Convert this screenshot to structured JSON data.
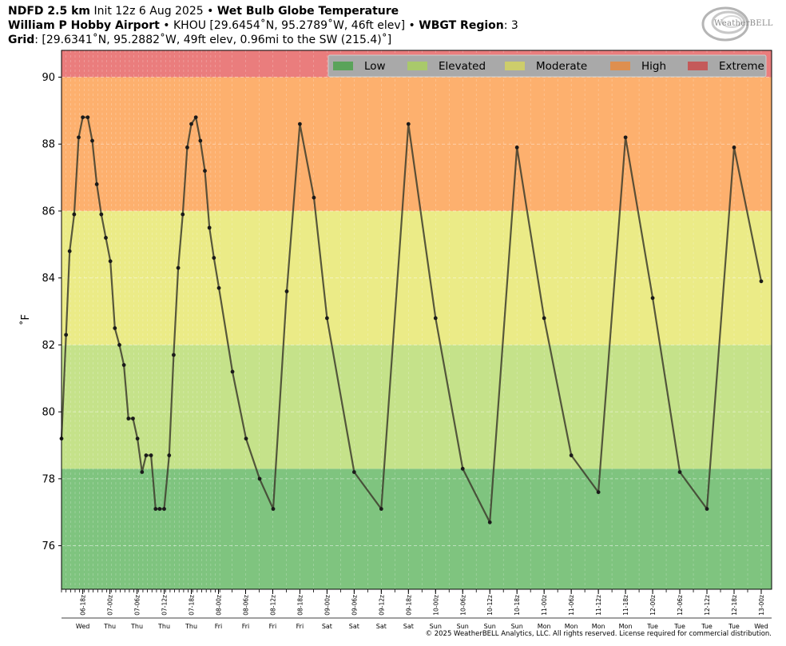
{
  "header": {
    "line1_model": "NDFD 2.5 km",
    "line1_init": "Init 12z 6 Aug 2025",
    "line1_sep": "•",
    "line1_product": "Wet Bulb Globe Temperature",
    "line2_station": "William P Hobby Airport",
    "line2_location": "• KHOU [29.6454˚N, 95.2789˚W, 46ft elev] •",
    "line2_region_label": "WBGT Region",
    "line2_region_value": ": 3",
    "line3_label": "Grid",
    "line3_value": ": [29.6341˚N, 95.2882˚W, 49ft elev, 0.96mi to the SW (215.4)˚]"
  },
  "logo": {
    "text": "WeatherBELL",
    "subtext": "Analytics LLC",
    "icon": "swirl-logo-icon"
  },
  "copyright": "© 2025 WeatherBELL Analytics, LLC. All rights reserved. License required for commercial distribution.",
  "chart_data": {
    "type": "line",
    "ylabel": "˚F",
    "ylim": [
      74.7,
      90.8
    ],
    "yticks": [
      76,
      78,
      80,
      82,
      84,
      86,
      88,
      90
    ],
    "xlim_hours": [
      0,
      157
    ],
    "grid": true,
    "legend_placement": "top-right",
    "bands": [
      {
        "name": "Low",
        "from": 74.7,
        "to": 78.3,
        "color": "#7fc47f",
        "legend_color": "#5aa35a"
      },
      {
        "name": "Elevated",
        "from": 78.3,
        "to": 82.0,
        "color": "#c5e28a",
        "legend_color": "#a9c96b"
      },
      {
        "name": "Moderate",
        "from": 82.0,
        "to": 86.0,
        "color": "#ebeb87",
        "legend_color": "#cdcd6b"
      },
      {
        "name": "High",
        "from": 86.0,
        "to": 90.0,
        "color": "#fdb06e",
        "legend_color": "#de8f4f"
      },
      {
        "name": "Extreme",
        "from": 90.0,
        "to": 90.8,
        "color": "#ea7d7d",
        "legend_color": "#c45a5a"
      }
    ],
    "x_tick_labels": [
      {
        "h": 4.7,
        "time": "06-18z",
        "day": "Wed"
      },
      {
        "h": 10.7,
        "time": "07-00z",
        "day": "Thu"
      },
      {
        "h": 16.7,
        "time": "07-06z",
        "day": "Thu"
      },
      {
        "h": 22.7,
        "time": "07-12z",
        "day": "Thu"
      },
      {
        "h": 28.7,
        "time": "07-18z",
        "day": "Thu"
      },
      {
        "h": 34.7,
        "time": "08-00z",
        "day": "Fri"
      },
      {
        "h": 40.7,
        "time": "08-06z",
        "day": "Fri"
      },
      {
        "h": 46.7,
        "time": "08-12z",
        "day": "Fri"
      },
      {
        "h": 52.7,
        "time": "08-18z",
        "day": "Fri"
      },
      {
        "h": 58.7,
        "time": "09-00z",
        "day": "Sat"
      },
      {
        "h": 64.7,
        "time": "09-06z",
        "day": "Sat"
      },
      {
        "h": 70.7,
        "time": "09-12z",
        "day": "Sat"
      },
      {
        "h": 76.7,
        "time": "09-18z",
        "day": "Sat"
      },
      {
        "h": 82.7,
        "time": "10-00z",
        "day": "Sun"
      },
      {
        "h": 88.7,
        "time": "10-06z",
        "day": "Sun"
      },
      {
        "h": 94.7,
        "time": "10-12z",
        "day": "Sun"
      },
      {
        "h": 100.7,
        "time": "10-18z",
        "day": "Sun"
      },
      {
        "h": 106.7,
        "time": "11-00z",
        "day": "Mon"
      },
      {
        "h": 112.7,
        "time": "11-06z",
        "day": "Mon"
      },
      {
        "h": 118.7,
        "time": "11-12z",
        "day": "Mon"
      },
      {
        "h": 124.7,
        "time": "11-18z",
        "day": "Mon"
      },
      {
        "h": 130.7,
        "time": "12-00z",
        "day": "Tue"
      },
      {
        "h": 136.7,
        "time": "12-06z",
        "day": "Tue"
      },
      {
        "h": 142.7,
        "time": "12-12z",
        "day": "Tue"
      },
      {
        "h": 148.7,
        "time": "12-18z",
        "day": "Tue"
      },
      {
        "h": 154.7,
        "time": "13-00z",
        "day": "Wed"
      }
    ],
    "series": [
      {
        "color": "#3d3d2d",
        "points": [
          {
            "h": 0.0,
            "v": 79.2
          },
          {
            "h": 1.0,
            "v": 82.3
          },
          {
            "h": 1.8,
            "v": 84.8
          },
          {
            "h": 2.8,
            "v": 85.9
          },
          {
            "h": 3.8,
            "v": 88.2
          },
          {
            "h": 4.7,
            "v": 88.8
          },
          {
            "h": 5.8,
            "v": 88.8
          },
          {
            "h": 6.8,
            "v": 88.1
          },
          {
            "h": 7.8,
            "v": 86.8
          },
          {
            "h": 8.8,
            "v": 85.9
          },
          {
            "h": 9.8,
            "v": 85.2
          },
          {
            "h": 10.8,
            "v": 84.5
          },
          {
            "h": 11.8,
            "v": 82.5
          },
          {
            "h": 12.8,
            "v": 82.0
          },
          {
            "h": 13.8,
            "v": 81.4
          },
          {
            "h": 14.8,
            "v": 79.8
          },
          {
            "h": 15.8,
            "v": 79.8
          },
          {
            "h": 16.8,
            "v": 79.2
          },
          {
            "h": 17.8,
            "v": 78.2
          },
          {
            "h": 18.7,
            "v": 78.7
          },
          {
            "h": 19.8,
            "v": 78.7
          },
          {
            "h": 20.8,
            "v": 77.1
          },
          {
            "h": 21.7,
            "v": 77.1
          },
          {
            "h": 22.7,
            "v": 77.1
          },
          {
            "h": 23.8,
            "v": 78.7
          },
          {
            "h": 24.8,
            "v": 81.7
          },
          {
            "h": 25.8,
            "v": 84.3
          },
          {
            "h": 26.8,
            "v": 85.9
          },
          {
            "h": 27.8,
            "v": 87.9
          },
          {
            "h": 28.7,
            "v": 88.6
          },
          {
            "h": 29.7,
            "v": 88.8
          },
          {
            "h": 30.7,
            "v": 88.1
          },
          {
            "h": 31.7,
            "v": 87.2
          },
          {
            "h": 32.7,
            "v": 85.5
          },
          {
            "h": 33.7,
            "v": 84.6
          },
          {
            "h": 34.8,
            "v": 83.7
          },
          {
            "h": 37.8,
            "v": 81.2
          },
          {
            "h": 40.8,
            "v": 79.2
          },
          {
            "h": 43.8,
            "v": 78.0
          },
          {
            "h": 46.8,
            "v": 77.1
          },
          {
            "h": 49.8,
            "v": 83.6
          },
          {
            "h": 52.7,
            "v": 88.6
          },
          {
            "h": 55.8,
            "v": 86.4
          },
          {
            "h": 58.7,
            "v": 82.8
          },
          {
            "h": 64.7,
            "v": 78.2
          },
          {
            "h": 70.7,
            "v": 77.1
          },
          {
            "h": 76.7,
            "v": 88.6
          },
          {
            "h": 82.7,
            "v": 82.8
          },
          {
            "h": 88.7,
            "v": 78.3
          },
          {
            "h": 94.7,
            "v": 76.7
          },
          {
            "h": 100.7,
            "v": 87.9
          },
          {
            "h": 106.7,
            "v": 82.8
          },
          {
            "h": 112.7,
            "v": 78.7
          },
          {
            "h": 118.7,
            "v": 77.6
          },
          {
            "h": 124.7,
            "v": 88.2
          },
          {
            "h": 130.7,
            "v": 83.4
          },
          {
            "h": 136.7,
            "v": 78.2
          },
          {
            "h": 142.7,
            "v": 77.1
          },
          {
            "h": 148.7,
            "v": 87.9
          },
          {
            "h": 154.7,
            "v": 83.9
          }
        ]
      }
    ]
  }
}
